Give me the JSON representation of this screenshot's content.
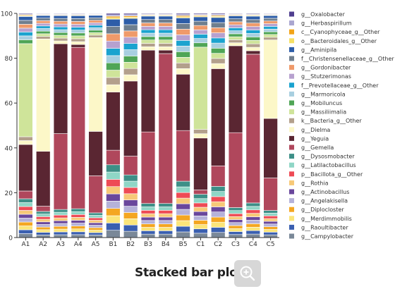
{
  "chart_data": {
    "type": "bar",
    "stacked": true,
    "percent": true,
    "title": "",
    "xlabel": "",
    "ylabel": "",
    "ylim": [
      0,
      100
    ],
    "yticks": [
      0,
      20,
      40,
      60,
      80,
      100
    ],
    "grid": false,
    "legend_position": "right",
    "categories": [
      "A1",
      "A2",
      "A3",
      "A4",
      "A5",
      "B1",
      "B2",
      "B3",
      "B4",
      "B5",
      "C1",
      "C2",
      "C3",
      "C4",
      "C5"
    ],
    "series": [
      {
        "name": "g__Oxalobacter",
        "color": "#4f3f8f",
        "values": [
          0.2,
          0.2,
          0.2,
          0.2,
          0.2,
          0.2,
          0.2,
          0.2,
          0.2,
          0.2,
          0.2,
          0.2,
          0.2,
          0.2,
          0.2
        ]
      },
      {
        "name": "g__Herbaspirillum",
        "color": "#aaa6d0",
        "values": [
          0.2,
          0.2,
          0.2,
          0.2,
          0.2,
          0.2,
          0.2,
          0.2,
          0.2,
          0.2,
          0.2,
          0.2,
          0.2,
          0.2,
          0.2
        ]
      },
      {
        "name": "c__Cyanophyceae_g__Other",
        "color": "#f2a418",
        "values": [
          0.2,
          0.2,
          0.2,
          0.2,
          0.2,
          0.2,
          0.2,
          0.2,
          0.2,
          0.2,
          0.2,
          0.2,
          0.2,
          0.2,
          0.2
        ]
      },
      {
        "name": "o__Bacteroidales_g__Other",
        "color": "#f6e065",
        "values": [
          0.2,
          0.2,
          0.2,
          0.2,
          0.2,
          0.2,
          0.2,
          0.2,
          0.2,
          0.2,
          0.2,
          0.2,
          0.2,
          0.2,
          0.2
        ]
      },
      {
        "name": "g__Aminipila",
        "color": "#2d5da8",
        "values": [
          1,
          1,
          1,
          1,
          1,
          1,
          1,
          1,
          1,
          1,
          1,
          1,
          1,
          1,
          1
        ]
      },
      {
        "name": "f__Christensenellaceae_g__Other",
        "color": "#6f7f8f",
        "values": [
          1,
          1,
          1,
          1,
          1,
          1,
          1,
          1,
          1,
          1,
          1,
          1,
          1,
          1,
          1
        ]
      },
      {
        "name": "g__Gordonibacter",
        "color": "#ef9a6a",
        "values": [
          1,
          1,
          1,
          1,
          1,
          1,
          1,
          1,
          1,
          1,
          1,
          1,
          1,
          1,
          1
        ]
      },
      {
        "name": "g__Stutzerimonas",
        "color": "#b7a1cf",
        "values": [
          1,
          1,
          1,
          1,
          1,
          1,
          1,
          1,
          1,
          1,
          1,
          1,
          1,
          1,
          1
        ]
      },
      {
        "name": "f__Prevotellaceae_g__Other",
        "color": "#1ba3cf",
        "values": [
          1,
          1,
          1,
          1,
          1,
          1,
          1,
          1,
          1,
          1,
          1,
          1,
          1,
          1,
          1
        ]
      },
      {
        "name": "g__Marmoricola",
        "color": "#a8cfe0",
        "values": [
          1,
          1,
          1,
          1,
          1,
          1,
          1,
          1,
          1,
          1,
          1,
          1,
          1,
          1,
          1
        ]
      },
      {
        "name": "g__Mobiluncus",
        "color": "#4fa556",
        "values": [
          1,
          1,
          1,
          1,
          1,
          1,
          1,
          1,
          1,
          1,
          1,
          1,
          1,
          1,
          1
        ]
      },
      {
        "name": "g__Massiliimalia",
        "color": "#cfe49a",
        "values": [
          24,
          1,
          1,
          1,
          1,
          1,
          1,
          1,
          1,
          1,
          19,
          1,
          1,
          1,
          1
        ]
      },
      {
        "name": "k__Bacteria_g__Other",
        "color": "#b3a08c",
        "values": [
          1,
          1,
          1,
          1,
          1,
          1,
          1,
          1,
          1,
          1,
          1,
          1,
          1,
          1,
          1
        ]
      },
      {
        "name": "g__Dielma",
        "color": "#fcf7c8",
        "values": [
          1,
          43,
          1,
          1,
          38,
          1,
          1,
          1,
          1,
          1,
          1,
          1,
          1,
          1,
          29
        ]
      },
      {
        "name": "g__Yeguia",
        "color": "#5a2632",
        "values": [
          12,
          21,
          32,
          1,
          18,
          8,
          12,
          24,
          1,
          10,
          12,
          19,
          29,
          1,
          22
        ]
      },
      {
        "name": "g__Gemella",
        "color": "#b0475c",
        "values": [
          2,
          2,
          27,
          56,
          15,
          2,
          3,
          21,
          44,
          9,
          1,
          4,
          25,
          43,
          12
        ]
      },
      {
        "name": "g__Dysosmobacter",
        "color": "#3d8f87",
        "values": [
          1,
          1,
          1,
          1,
          1,
          1,
          1,
          1,
          1,
          1,
          1,
          1,
          1,
          1,
          1
        ]
      },
      {
        "name": "g__Latilactobacillus",
        "color": "#8fd6c6",
        "values": [
          1,
          1,
          1,
          1,
          1,
          1,
          1,
          1,
          1,
          1,
          1,
          1,
          1,
          1,
          1
        ]
      },
      {
        "name": "p__Bacillota_g__Other",
        "color": "#ee4b55",
        "values": [
          1,
          1,
          1,
          1,
          1,
          1,
          1,
          1,
          1,
          1,
          1,
          1,
          1,
          1,
          1
        ]
      },
      {
        "name": "g__Rothia",
        "color": "#f7c978",
        "values": [
          1,
          1,
          1,
          1,
          1,
          1,
          1,
          1,
          1,
          1,
          1,
          1,
          1,
          1,
          1
        ]
      },
      {
        "name": "g__Actinobacillus",
        "color": "#6a479c",
        "values": [
          1,
          1,
          1,
          1,
          1,
          1,
          1,
          1,
          1,
          1,
          1,
          1,
          1,
          1,
          1
        ]
      },
      {
        "name": "g__Angelakisella",
        "color": "#b5b2d9",
        "values": [
          1,
          1,
          1,
          1,
          1,
          1,
          1,
          1,
          1,
          1,
          1,
          1,
          1,
          1,
          1
        ]
      },
      {
        "name": "g__Diplocloster",
        "color": "#f4a621",
        "values": [
          1,
          1,
          1,
          1,
          1,
          1,
          1,
          1,
          1,
          1,
          1,
          1,
          1,
          1,
          1
        ]
      },
      {
        "name": "g__Merdimmobilis",
        "color": "#fbe57a",
        "values": [
          1,
          1,
          1,
          1,
          1,
          1,
          1,
          1,
          1,
          1,
          1,
          1,
          1,
          1,
          1
        ]
      },
      {
        "name": "g__Raoultibacter",
        "color": "#3a5fb0",
        "values": [
          1,
          1,
          1,
          1,
          1,
          1,
          1,
          1,
          1,
          1,
          1,
          1,
          1,
          1,
          1
        ]
      },
      {
        "name": "g__Campylobacter",
        "color": "#7a8898",
        "values": [
          1,
          1,
          1,
          1,
          1,
          1,
          1,
          1,
          1,
          1,
          1,
          1,
          1,
          1,
          1
        ]
      }
    ]
  },
  "caption": {
    "title": "Stacked bar plot",
    "zoom_icon": "zoom-in-icon"
  }
}
